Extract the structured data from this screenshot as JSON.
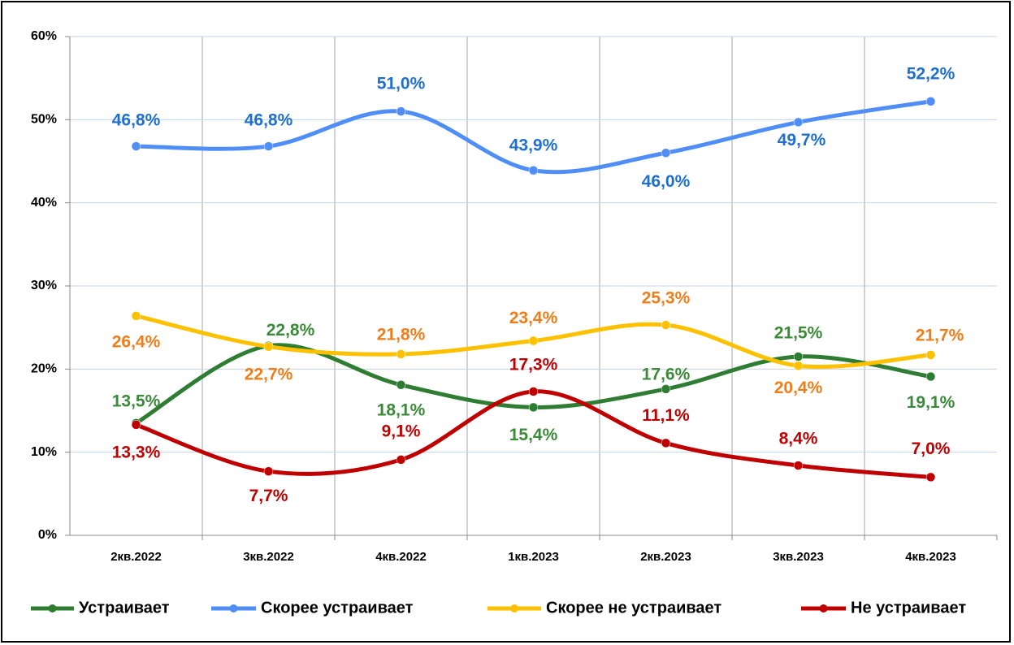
{
  "chart_data": {
    "type": "line",
    "categories": [
      "2кв.2022",
      "3кв.2022",
      "4кв.2022",
      "1кв.2023",
      "2кв.2023",
      "3кв.2023",
      "4кв.2023"
    ],
    "series": [
      {
        "name": "Устраивает",
        "color": "#2e7d32",
        "label_color": "#3a8a3a",
        "values": [
          13.5,
          22.8,
          18.1,
          15.4,
          17.6,
          21.5,
          19.1
        ],
        "value_labels": [
          "13,5%",
          "22,8%",
          "18,1%",
          "15,4%",
          "17,6%",
          "21,5%",
          "19,1%"
        ]
      },
      {
        "name": "Скорее устраивает",
        "color": "#4f8ef7",
        "label_color": "#1f6fd1",
        "values": [
          46.8,
          46.8,
          51.0,
          43.9,
          46.0,
          49.7,
          52.2
        ],
        "value_labels": [
          "46,8%",
          "46,8%",
          "51,0%",
          "43,9%",
          "46,0%",
          "49,7%",
          "52,2%"
        ]
      },
      {
        "name": "Скорее не устраивает",
        "color": "#ffc000",
        "label_color": "#f07d1a",
        "values": [
          26.4,
          22.7,
          21.8,
          23.4,
          25.3,
          20.4,
          21.7
        ],
        "value_labels": [
          "26,4%",
          "22,7%",
          "21,8%",
          "23,4%",
          "25,3%",
          "20,4%",
          "21,7%"
        ]
      },
      {
        "name": "Не устраивает",
        "color": "#c00000",
        "label_color": "#c00000",
        "values": [
          13.3,
          7.7,
          9.1,
          17.3,
          11.1,
          8.4,
          7.0
        ],
        "value_labels": [
          "13,3%",
          "7,7%",
          "9,1%",
          "17,3%",
          "11,1%",
          "8,4%",
          "7,0%"
        ]
      }
    ],
    "ylim": [
      0,
      60
    ],
    "yticks": [
      {
        "value": 0,
        "label": "0%"
      },
      {
        "value": 10,
        "label": "10%"
      },
      {
        "value": 20,
        "label": "20%"
      },
      {
        "value": 30,
        "label": "30%"
      },
      {
        "value": 40,
        "label": "40%"
      },
      {
        "value": 50,
        "label": "50%"
      },
      {
        "value": 60,
        "label": "60%"
      }
    ],
    "grid": true,
    "legend": "bottom",
    "smooth": true
  }
}
